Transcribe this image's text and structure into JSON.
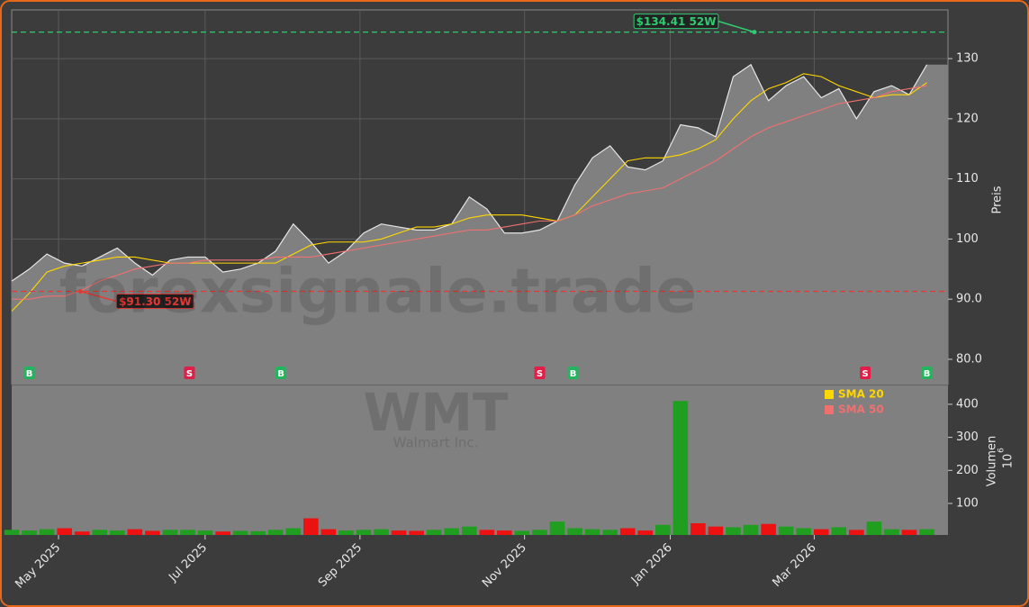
{
  "chart_data": [
    {
      "type": "area",
      "watermark": "forexsignale.trade",
      "y_label": "Preis",
      "xlim": [
        0,
        53.2
      ],
      "ylim": [
        75.8,
        138.1
      ],
      "yticks": [
        {
          "value": 80,
          "label": "80.0"
        },
        {
          "value": 90,
          "label": "90.0"
        },
        100,
        110,
        120,
        130
      ],
      "grid": true,
      "fill_color": "#808080",
      "series": [
        {
          "color": "#e6e6e6",
          "values": [
            93,
            95,
            97.5,
            96,
            95.5,
            97,
            98.5,
            96,
            94,
            96.5,
            97,
            97,
            94.5,
            95,
            96,
            98,
            102.5,
            99.5,
            96,
            98,
            101,
            102.5,
            102,
            101.5,
            101.5,
            102.5,
            107,
            105,
            101,
            101,
            101.5,
            103,
            109,
            113.5,
            115.5,
            112,
            111.5,
            113,
            119,
            118.5,
            117,
            127,
            129,
            123,
            125.5,
            127,
            123.5,
            125,
            120,
            124.5,
            125.5,
            124,
            129
          ]
        },
        {
          "name": "SMA 20",
          "color": "#ffd700",
          "values": [
            88,
            91,
            94.5,
            95.5,
            96,
            96.5,
            97,
            97,
            96.5,
            96,
            96,
            96,
            96,
            96,
            96,
            96,
            97.5,
            99,
            99.5,
            99.5,
            99.5,
            100,
            101,
            102,
            102,
            102.5,
            103.5,
            104,
            104,
            104,
            103.5,
            103,
            104,
            107,
            110,
            113,
            113.5,
            113.5,
            114,
            115,
            116.5,
            120,
            123,
            125,
            126,
            127.5,
            127,
            125.5,
            124.5,
            123.5,
            124,
            124,
            126
          ]
        },
        {
          "name": "SMA 50",
          "color": "#f07070",
          "values": [
            90,
            90,
            90.5,
            90.5,
            91.5,
            93,
            94,
            95,
            95.5,
            96,
            96,
            96.5,
            96.5,
            96.5,
            96.5,
            97,
            97,
            97,
            97.5,
            98,
            98.5,
            99,
            99.5,
            100,
            100.5,
            101,
            101.5,
            101.5,
            102,
            102.5,
            103,
            103,
            104,
            105.5,
            106.5,
            107.5,
            108,
            108.5,
            110,
            111.5,
            113,
            115,
            117,
            118.5,
            119.5,
            120.5,
            121.5,
            122.5,
            123,
            123.5,
            124.5,
            125,
            125.5
          ]
        }
      ],
      "levels": [
        {
          "value": 134.41,
          "x": 42.2,
          "label": "$134.41 52W",
          "color": "#2ecc71"
        },
        {
          "value": 91.3,
          "x": 3.9,
          "label": "$91.30 52W",
          "color": "#e53935"
        }
      ],
      "signals": [
        {
          "label": "B",
          "x": 1
        },
        {
          "label": "S",
          "x": 10.1
        },
        {
          "label": "B",
          "x": 15.3
        },
        {
          "label": "S",
          "x": 30
        },
        {
          "label": "B",
          "x": 31.9
        },
        {
          "label": "S",
          "x": 48.5
        },
        {
          "label": "B",
          "x": 52
        }
      ],
      "signal_colors": {
        "B": "#22b55e",
        "S": "#e11d48"
      }
    },
    {
      "type": "bar",
      "title": "WMT",
      "subtitle": "Walmart Inc.",
      "y_label": "Volumen",
      "y_scale_base": "10",
      "y_scale_exponent": "6",
      "xlim": [
        0,
        53.2
      ],
      "ylim": [
        4.6,
        457
      ],
      "yticks": [
        100,
        200,
        300,
        400
      ],
      "xticks": [
        {
          "value": 2.66,
          "label": "May 2025"
        },
        {
          "value": 10.99,
          "label": "Jul 2025"
        },
        {
          "value": 19.79,
          "label": "Sep 2025"
        },
        {
          "value": 29.14,
          "label": "Nov 2025"
        },
        {
          "value": 37.42,
          "label": "Jan 2026"
        },
        {
          "value": 45.6,
          "label": "Mar 2026"
        }
      ],
      "up_color": "#1f9e1f",
      "down_color": "#ee1111",
      "values": [
        20,
        18,
        22,
        25,
        15,
        20,
        18,
        22,
        17,
        20,
        20,
        18,
        15,
        17,
        16,
        20,
        25,
        55,
        22,
        18,
        20,
        22,
        18,
        17,
        20,
        25,
        30,
        20,
        18,
        17,
        20,
        45,
        25,
        22,
        20,
        25,
        18,
        35,
        410,
        40,
        30,
        28,
        35,
        38,
        30,
        25,
        22,
        28,
        20,
        45,
        22,
        20,
        22
      ]
    }
  ]
}
